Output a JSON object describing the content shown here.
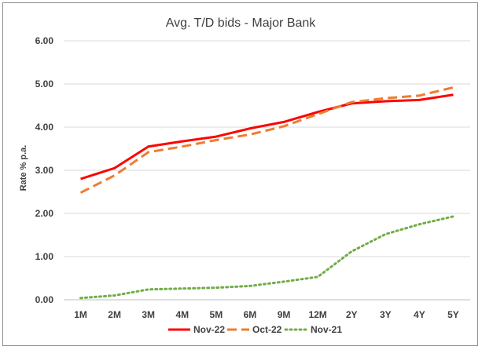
{
  "chart_data": {
    "type": "line",
    "title": "Avg. T/D bids - Major Bank",
    "xlabel": "",
    "ylabel": "Rate % p.a.",
    "categories": [
      "1M",
      "2M",
      "3M",
      "4M",
      "5M",
      "6M",
      "9M",
      "12M",
      "2Y",
      "3Y",
      "4Y",
      "5Y"
    ],
    "ylim": [
      0,
      6
    ],
    "yticks": [
      "0.00",
      "1.00",
      "2.00",
      "3.00",
      "4.00",
      "5.00",
      "6.00"
    ],
    "grid": true,
    "legend_position": "bottom",
    "series": [
      {
        "name": "Nov-22",
        "color": "#ff0000",
        "style": "solid",
        "values": [
          2.8,
          3.05,
          3.55,
          3.67,
          3.78,
          3.97,
          4.12,
          4.35,
          4.55,
          4.6,
          4.63,
          4.75
        ]
      },
      {
        "name": "Oct-22",
        "color": "#ed7d31",
        "style": "dashed",
        "values": [
          2.48,
          2.88,
          3.42,
          3.55,
          3.7,
          3.83,
          4.02,
          4.3,
          4.58,
          4.67,
          4.73,
          4.92
        ]
      },
      {
        "name": "Nov-21",
        "color": "#70ad47",
        "style": "dotted",
        "values": [
          0.04,
          0.1,
          0.24,
          0.26,
          0.28,
          0.32,
          0.42,
          0.53,
          1.12,
          1.52,
          1.75,
          1.93
        ]
      }
    ]
  }
}
